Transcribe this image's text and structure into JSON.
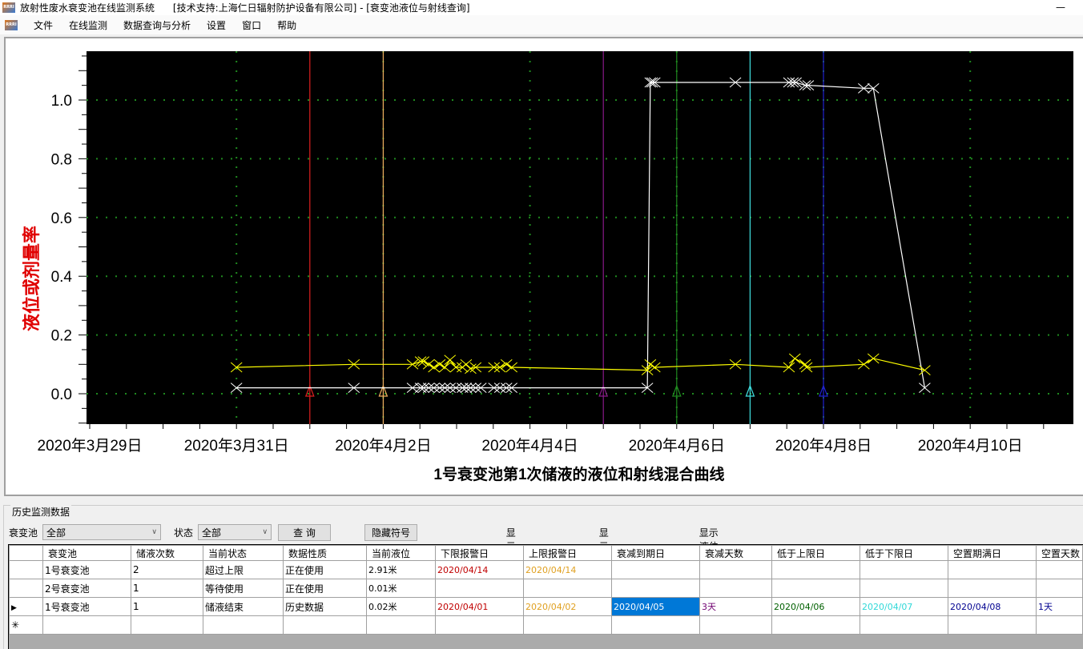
{
  "window": {
    "title": "放射性废水衰变池在线监测系统      [技术支持:上海仁日辐射防护设备有限公司] - [衰变池液位与射线查询]",
    "minimize": "—",
    "icon_text": "RRRI"
  },
  "menu": [
    "文件",
    "在线监测",
    "数据查询与分析",
    "设置",
    "窗口",
    "帮助"
  ],
  "chart_data": {
    "type": "line",
    "title": "1号衰变池第1次储液的液位和射线混合曲线",
    "ylabel": "液位或剂量率",
    "xlabel": "",
    "ylim": [
      -0.104,
      1.163
    ],
    "xlim": [
      "2020-03-28 23:00",
      "2020-04-11 09:40"
    ],
    "yticks": [
      "0.0",
      "0.2",
      "0.4",
      "0.6",
      "0.8",
      "1.0"
    ],
    "xticks": [
      "2020年3月29日",
      "2020年3月31日",
      "2020年4月2日",
      "2020年4月4日",
      "2020年4月6日",
      "2020年4月8日",
      "2020年4月10日"
    ],
    "grid": true,
    "background": "#000000",
    "series": [
      {
        "color": "#ffffff",
        "marker": "x",
        "points": [
          [
            "2020-03-31 00:00",
            0.02
          ],
          [
            "2020-04-01 14:24",
            0.02
          ],
          [
            "2020-04-02 09:36",
            0.02
          ],
          [
            "2020-04-02 12:14",
            0.02
          ],
          [
            "2020-04-02 13:12",
            0.02
          ],
          [
            "2020-04-02 14:53",
            0.02
          ],
          [
            "2020-04-02 16:34",
            0.02
          ],
          [
            "2020-04-02 18:29",
            0.02
          ],
          [
            "2020-04-02 20:10",
            0.02
          ],
          [
            "2020-04-02 21:50",
            0.02
          ],
          [
            "2020-04-02 23:46",
            0.02
          ],
          [
            "2020-04-03 01:55",
            0.02
          ],
          [
            "2020-04-03 03:07",
            0.02
          ],
          [
            "2020-04-03 04:34",
            0.02
          ],
          [
            "2020-04-03 06:14",
            0.02
          ],
          [
            "2020-04-03 07:55",
            0.02
          ],
          [
            "2020-04-03 12:14",
            0.02
          ],
          [
            "2020-04-03 14:10",
            0.02
          ],
          [
            "2020-04-03 16:19",
            0.02
          ],
          [
            "2020-04-03 18:00",
            0.02
          ],
          [
            "2020-04-05 14:24",
            0.02
          ],
          [
            "2020-04-05 15:22",
            1.06
          ],
          [
            "2020-04-05 16:00",
            1.06
          ],
          [
            "2020-04-05 16:48",
            1.06
          ],
          [
            "2020-04-06 19:12",
            1.06
          ],
          [
            "2020-04-07 12:43",
            1.06
          ],
          [
            "2020-04-07 14:00",
            1.06
          ],
          [
            "2020-04-07 15:00",
            1.06
          ],
          [
            "2020-04-07 18:00",
            1.05
          ],
          [
            "2020-04-07 19:00",
            1.05
          ],
          [
            "2020-04-08 13:12",
            1.04
          ],
          [
            "2020-04-08 16:19",
            1.04
          ],
          [
            "2020-04-09 09:07",
            0.02
          ]
        ]
      },
      {
        "color": "#ffff00",
        "marker": "x",
        "points": [
          [
            "2020-03-31 00:00",
            0.09
          ],
          [
            "2020-04-01 14:24",
            0.1
          ],
          [
            "2020-04-02 09:36",
            0.1
          ],
          [
            "2020-04-02 12:14",
            0.11
          ],
          [
            "2020-04-02 13:12",
            0.11
          ],
          [
            "2020-04-02 14:53",
            0.1
          ],
          [
            "2020-04-02 16:34",
            0.09
          ],
          [
            "2020-04-02 18:29",
            0.1
          ],
          [
            "2020-04-02 20:10",
            0.09
          ],
          [
            "2020-04-02 21:50",
            0.115
          ],
          [
            "2020-04-02 23:46",
            0.09
          ],
          [
            "2020-04-03 01:55",
            0.09
          ],
          [
            "2020-04-03 03:07",
            0.1
          ],
          [
            "2020-04-03 04:34",
            0.085
          ],
          [
            "2020-04-03 06:14",
            0.09
          ],
          [
            "2020-04-03 12:14",
            0.09
          ],
          [
            "2020-04-03 14:10",
            0.09
          ],
          [
            "2020-04-03 16:19",
            0.1
          ],
          [
            "2020-04-03 18:00",
            0.09
          ],
          [
            "2020-04-05 14:24",
            0.08
          ],
          [
            "2020-04-05 15:22",
            0.1
          ],
          [
            "2020-04-05 16:48",
            0.09
          ],
          [
            "2020-04-06 19:12",
            0.1
          ],
          [
            "2020-04-07 12:43",
            0.09
          ],
          [
            "2020-04-07 14:38",
            0.12
          ],
          [
            "2020-04-07 18:00",
            0.1
          ],
          [
            "2020-04-07 18:30",
            0.09
          ],
          [
            "2020-04-08 13:12",
            0.1
          ],
          [
            "2020-04-08 16:19",
            0.12
          ],
          [
            "2020-04-09 09:07",
            0.08
          ]
        ]
      }
    ],
    "markers": [
      {
        "date": "2020-04-01 00:00",
        "color": "#e02020"
      },
      {
        "date": "2020-04-02 00:00",
        "color": "#f0b060"
      },
      {
        "date": "2020-04-05 00:00",
        "color": "#8a1a8a"
      },
      {
        "date": "2020-04-06 00:00",
        "color": "#208a20"
      },
      {
        "date": "2020-04-07 00:00",
        "color": "#40e0e0"
      },
      {
        "date": "2020-04-08 00:00",
        "color": "#2020d0"
      }
    ]
  },
  "history": {
    "group_title": "历史监测数据",
    "pool_label": "衰变池",
    "pool_value": "全部",
    "status_label": "状态",
    "status_value": "全部",
    "query_button": "查 询",
    "hide_symbol_button": "隐藏符号",
    "radios": [
      {
        "label": "显示液位曲线",
        "checked": false
      },
      {
        "label": "显示射线曲线",
        "checked": false
      },
      {
        "label": "显示液位+射线曲线",
        "checked": true
      }
    ],
    "columns": [
      "衰变池",
      "储液次数",
      "当前状态",
      "数据性质",
      "当前液位",
      "下限报警日",
      "上限报警日",
      "衰减到期日",
      "衰减天数",
      "低于上限日",
      "低于下限日",
      "空置期满日",
      "空置天数"
    ],
    "rows": [
      [
        "1号衰变池",
        "2",
        "超过上限",
        "正在使用",
        "2.91米",
        "2020/04/14",
        "2020/04/14",
        "",
        "",
        "",
        "",
        "",
        ""
      ],
      [
        "2号衰变池",
        "1",
        "等待使用",
        "正在使用",
        "0.01米",
        "",
        "",
        "",
        "",
        "",
        "",
        "",
        ""
      ],
      [
        "1号衰变池",
        "1",
        "储液结束",
        "历史数据",
        "0.02米",
        "2020/04/01",
        "2020/04/02",
        "2020/04/05",
        "3天",
        "2020/04/06",
        "2020/04/07",
        "2020/04/08",
        "1天"
      ]
    ],
    "column_colors": [
      "#000000",
      "#000000",
      "#000000",
      "#000000",
      "#000000",
      "#c00000",
      "#e0a020",
      "#ffffff",
      "#700070",
      "#006000",
      "#30d8d8",
      "#000090",
      "#000090"
    ],
    "current_row_icon": "row-pointer-icon",
    "new_row_icon": "new-row-asterisk-icon"
  }
}
